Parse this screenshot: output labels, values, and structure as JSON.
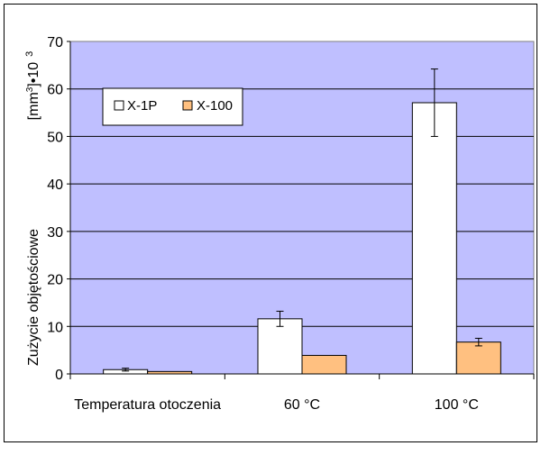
{
  "chart_data": {
    "type": "bar",
    "categories": [
      "Temperatura otoczenia",
      "60 °C",
      "100 °C"
    ],
    "series": [
      {
        "name": "X-1P",
        "color": "#FFFFFF",
        "values": [
          0.9,
          11.6,
          57.1
        ],
        "error": [
          0.3,
          1.6,
          7.1
        ]
      },
      {
        "name": "X-100",
        "color": "#FFC080",
        "values": [
          0.5,
          3.9,
          6.7
        ],
        "error": [
          0.0,
          0.0,
          0.8
        ]
      }
    ],
    "ylim": [
      0,
      70
    ],
    "yticks": [
      0,
      10,
      20,
      30,
      40,
      50,
      60,
      70
    ],
    "ylabel": "Zużycie objętościowe",
    "yunit_main": "[mm",
    "yunit_sup": "3",
    "yunit_tail": "]•10",
    "yunit_exp": "3",
    "grid": true,
    "legend_position": "top-left",
    "plot_background": "#BFBFFF"
  }
}
